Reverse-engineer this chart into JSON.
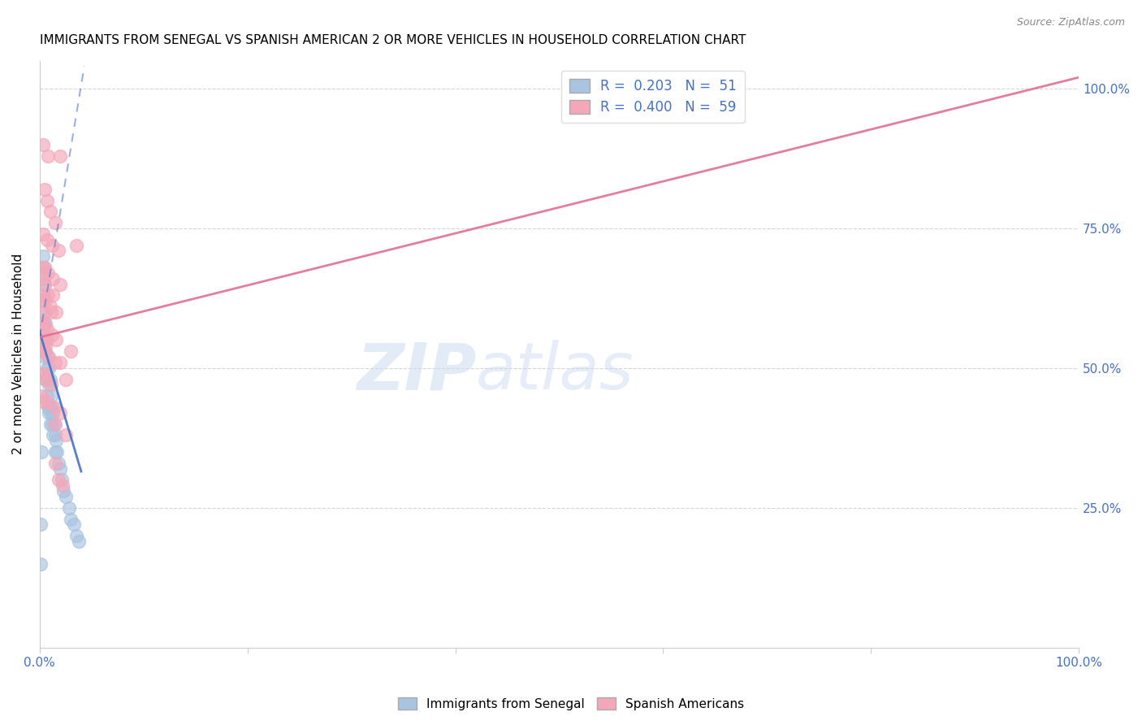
{
  "title": "IMMIGRANTS FROM SENEGAL VS SPANISH AMERICAN 2 OR MORE VEHICLES IN HOUSEHOLD CORRELATION CHART",
  "source": "Source: ZipAtlas.com",
  "ylabel": "2 or more Vehicles in Household",
  "watermark_zip": "ZIP",
  "watermark_atlas": "atlas",
  "blue_color": "#a8c4e0",
  "pink_color": "#f4a7b9",
  "blue_line_color": "#4472c4",
  "pink_line_color": "#e07090",
  "blue_scatter": [
    [
      0.002,
      0.58
    ],
    [
      0.003,
      0.62
    ],
    [
      0.003,
      0.55
    ],
    [
      0.004,
      0.63
    ],
    [
      0.004,
      0.58
    ],
    [
      0.005,
      0.6
    ],
    [
      0.005,
      0.55
    ],
    [
      0.005,
      0.52
    ],
    [
      0.006,
      0.58
    ],
    [
      0.006,
      0.53
    ],
    [
      0.006,
      0.48
    ],
    [
      0.007,
      0.55
    ],
    [
      0.007,
      0.5
    ],
    [
      0.007,
      0.45
    ],
    [
      0.008,
      0.52
    ],
    [
      0.008,
      0.48
    ],
    [
      0.008,
      0.43
    ],
    [
      0.009,
      0.5
    ],
    [
      0.009,
      0.47
    ],
    [
      0.009,
      0.42
    ],
    [
      0.01,
      0.48
    ],
    [
      0.01,
      0.43
    ],
    [
      0.01,
      0.4
    ],
    [
      0.011,
      0.45
    ],
    [
      0.011,
      0.42
    ],
    [
      0.012,
      0.43
    ],
    [
      0.012,
      0.4
    ],
    [
      0.013,
      0.42
    ],
    [
      0.013,
      0.38
    ],
    [
      0.014,
      0.4
    ],
    [
      0.015,
      0.38
    ],
    [
      0.015,
      0.35
    ],
    [
      0.016,
      0.37
    ],
    [
      0.017,
      0.35
    ],
    [
      0.018,
      0.33
    ],
    [
      0.02,
      0.32
    ],
    [
      0.021,
      0.3
    ],
    [
      0.023,
      0.28
    ],
    [
      0.025,
      0.27
    ],
    [
      0.028,
      0.25
    ],
    [
      0.03,
      0.23
    ],
    [
      0.033,
      0.22
    ],
    [
      0.035,
      0.2
    ],
    [
      0.038,
      0.19
    ],
    [
      0.003,
      0.7
    ],
    [
      0.003,
      0.67
    ],
    [
      0.004,
      0.68
    ],
    [
      0.005,
      0.65
    ],
    [
      0.001,
      0.22
    ],
    [
      0.002,
      0.35
    ],
    [
      0.001,
      0.15
    ]
  ],
  "pink_scatter": [
    [
      0.003,
      0.9
    ],
    [
      0.008,
      0.88
    ],
    [
      0.02,
      0.88
    ],
    [
      0.005,
      0.82
    ],
    [
      0.007,
      0.8
    ],
    [
      0.01,
      0.78
    ],
    [
      0.015,
      0.76
    ],
    [
      0.003,
      0.74
    ],
    [
      0.007,
      0.73
    ],
    [
      0.012,
      0.72
    ],
    [
      0.018,
      0.71
    ],
    [
      0.002,
      0.68
    ],
    [
      0.005,
      0.68
    ],
    [
      0.008,
      0.67
    ],
    [
      0.013,
      0.66
    ],
    [
      0.003,
      0.63
    ],
    [
      0.006,
      0.62
    ],
    [
      0.01,
      0.61
    ],
    [
      0.016,
      0.6
    ],
    [
      0.002,
      0.58
    ],
    [
      0.004,
      0.58
    ],
    [
      0.007,
      0.57
    ],
    [
      0.012,
      0.56
    ],
    [
      0.002,
      0.53
    ],
    [
      0.005,
      0.53
    ],
    [
      0.009,
      0.52
    ],
    [
      0.015,
      0.51
    ],
    [
      0.002,
      0.49
    ],
    [
      0.004,
      0.49
    ],
    [
      0.006,
      0.48
    ],
    [
      0.011,
      0.47
    ],
    [
      0.002,
      0.45
    ],
    [
      0.003,
      0.44
    ],
    [
      0.007,
      0.44
    ],
    [
      0.014,
      0.43
    ],
    [
      0.013,
      0.63
    ],
    [
      0.035,
      0.72
    ],
    [
      0.016,
      0.55
    ],
    [
      0.025,
      0.48
    ],
    [
      0.02,
      0.51
    ],
    [
      0.03,
      0.53
    ],
    [
      0.015,
      0.4
    ],
    [
      0.02,
      0.42
    ],
    [
      0.025,
      0.38
    ],
    [
      0.015,
      0.33
    ],
    [
      0.018,
      0.3
    ],
    [
      0.022,
      0.29
    ],
    [
      0.002,
      0.58
    ],
    [
      0.003,
      0.57
    ],
    [
      0.004,
      0.56
    ],
    [
      0.005,
      0.55
    ],
    [
      0.006,
      0.54
    ],
    [
      0.003,
      0.6
    ],
    [
      0.008,
      0.63
    ],
    [
      0.011,
      0.6
    ],
    [
      0.02,
      0.65
    ],
    [
      0.003,
      0.66
    ],
    [
      0.005,
      0.65
    ],
    [
      0.001,
      0.62
    ]
  ],
  "xmin": 0.0,
  "xmax": 1.0,
  "ymin": 0.0,
  "ymax": 1.05,
  "yticks": [
    0.25,
    0.5,
    0.75,
    1.0
  ],
  "xtick_positions": [
    0.0,
    0.2,
    0.4,
    0.6,
    0.8,
    1.0
  ],
  "xtick_labels_show": [
    "0.0%",
    "",
    "",
    "",
    "",
    "100.0%"
  ]
}
